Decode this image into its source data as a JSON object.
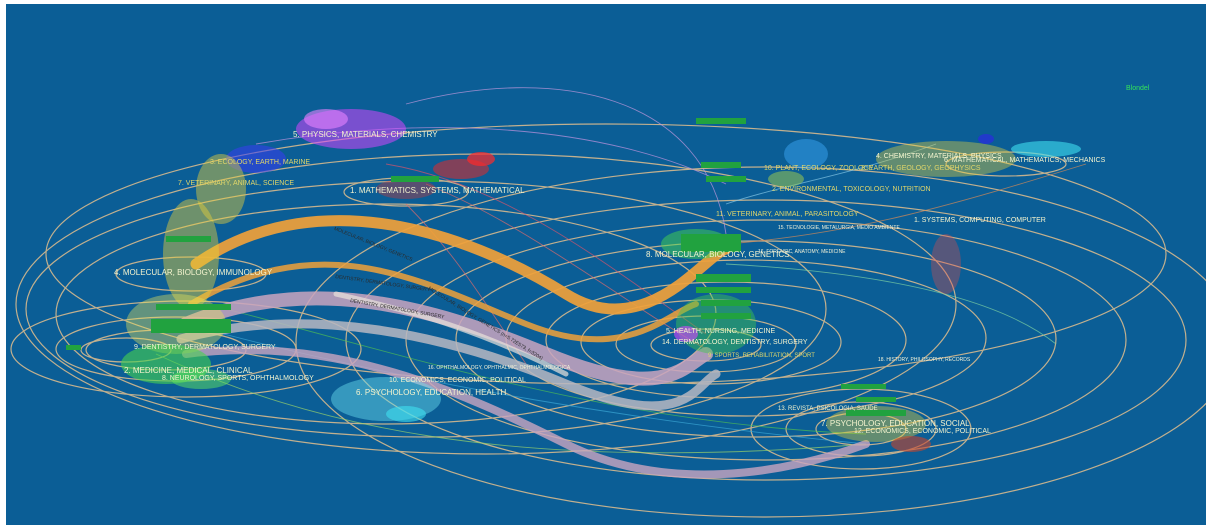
{
  "legend_label": "Blondel",
  "left_labels": [
    {
      "text": "5. PHYSICS, MATERIALS, CHEMISTRY"
    },
    {
      "text": "3. ECOLOGY, EARTH, MARINE"
    },
    {
      "text": "7. VETERINARY, ANIMAL, SCIENCE"
    },
    {
      "text": "1. MATHEMATICS, SYSTEMS, MATHEMATICAL"
    },
    {
      "text": "4. MOLECULAR, BIOLOGY, IMMUNOLOGY"
    },
    {
      "text": "9. DENTISTRY, DERMATOLOGY, SURGERY"
    },
    {
      "text": "2. MEDICINE, MEDICAL, CLINICAL"
    },
    {
      "text": "8. NEUROLOGY, SPORTS, OPHTHALMOLOGY"
    },
    {
      "text": "6. PSYCHOLOGY, EDUCATION, HEALTH"
    },
    {
      "text": "10. ECONOMICS, ECONOMIC, POLITICAL"
    },
    {
      "text": "16. OPHTHALMOLOGY, OPHTHALMIC, OPHTHALMOLOGICA"
    }
  ],
  "right_labels": [
    {
      "text": "4. CHEMISTRY, MATERIALS, PHYSICS"
    },
    {
      "text": "6. MATHEMATICAL, MATHEMATICS, MECHANICS"
    },
    {
      "text": "10. PLANT, ECOLOGY, ZOOLOGY"
    },
    {
      "text": "3. EARTH, GEOLOGY, GEOPHYSICS"
    },
    {
      "text": "2. ENVIRONMENTAL, TOXICOLOGY, NUTRITION"
    },
    {
      "text": "11. VETERINARY, ANIMAL, PARASITOLOGY"
    },
    {
      "text": "1. SYSTEMS, COMPUTING, COMPUTER"
    },
    {
      "text": "15. TECNOLOGIE, METALURGIA, MEDIO AMBIENTE"
    },
    {
      "text": "8. MOLECULAR, BIOLOGY, GENETICS"
    },
    {
      "text": "16. FORENSIC, ANATOMY, MEDICINE"
    },
    {
      "text": "5. HEALTH, NURSING, MEDICINE"
    },
    {
      "text": "14. DERMATOLOGY, DENTISTRY, SURGERY"
    },
    {
      "text": "9. SPORTS, REHABILITATION, SPORT"
    },
    {
      "text": "18. HISTORY, PHILOSOPHY, RECORDS"
    },
    {
      "text": "13. REVISTA, PSICOLOGIA, SAUDE"
    },
    {
      "text": "7. PSYCHOLOGY, EDUCATION, SOCIAL"
    },
    {
      "text": "12. ECONOMICS, ECONOMIC, POLITICAL"
    }
  ],
  "flow_labels": [
    {
      "text": "MOLECULAR, BIOLOGY, GENETICS"
    },
    {
      "text": "DENTISTRY, DERMATOLOGY, SURGERY"
    },
    {
      "text": "DENTISTRY, DERMATOLOGY, SURGERY"
    },
    {
      "text": "MOLECULAR, BIOLOGY, GENETICS (n=5.72E573, f=3204)"
    }
  ],
  "colors": {
    "background": "#0b5e96",
    "ellipse": "#d6b98e",
    "flow_orange": "#f0a13a",
    "flow_pink": "#c9a5c0",
    "flow_grey": "#b7b7c2"
  }
}
